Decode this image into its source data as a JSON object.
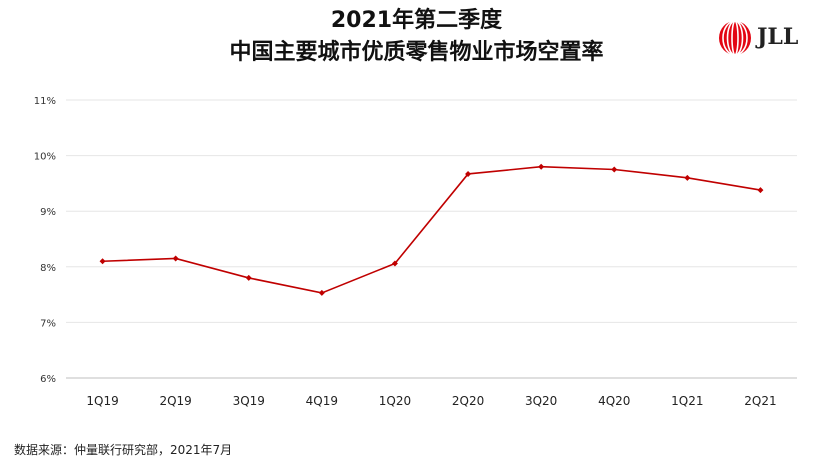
{
  "title_line1": "2021年第二季度",
  "title_line2": "中国主要城市优质零售物业市场空置率",
  "logo": {
    "text": "JLL",
    "accent": "#e30613"
  },
  "source": "数据来源：仲量联行研究部，2021年7月",
  "chart_data": {
    "type": "line",
    "categories": [
      "1Q19",
      "2Q19",
      "3Q19",
      "4Q19",
      "1Q20",
      "2Q20",
      "3Q20",
      "4Q20",
      "1Q21",
      "2Q21"
    ],
    "series": [
      {
        "values": [
          8.1,
          8.15,
          7.8,
          7.53,
          8.06,
          9.67,
          9.8,
          9.75,
          9.6,
          9.38
        ]
      }
    ],
    "ylim": [
      6,
      11
    ],
    "yticks": [
      "6%",
      "7%",
      "8%",
      "9%",
      "10%",
      "11%"
    ],
    "ytick_values": [
      6,
      7,
      8,
      9,
      10,
      11
    ],
    "grid": true,
    "line_color": "#c00000"
  }
}
